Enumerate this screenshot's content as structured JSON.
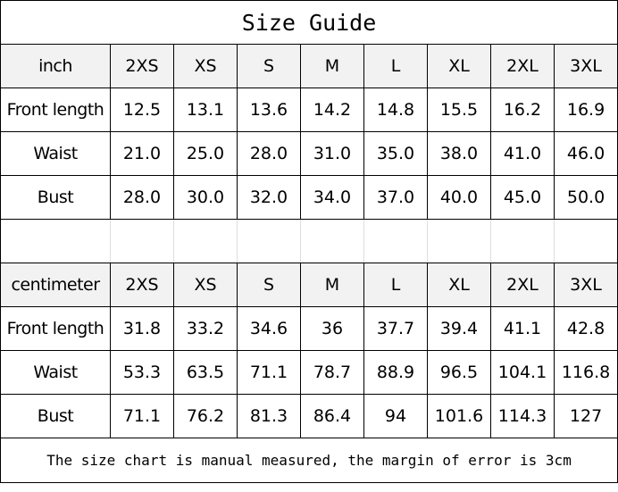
{
  "title": "Size Guide",
  "inch": {
    "header": [
      "inch",
      "2XS",
      "XS",
      "S",
      "M",
      "L",
      "XL",
      "2XL",
      "3XL"
    ],
    "rows": [
      [
        "Front length",
        "12.5",
        "13.1",
        "13.6",
        "14.2",
        "14.8",
        "15.5",
        "16.2",
        "16.9"
      ],
      [
        "Waist",
        "21.0",
        "25.0",
        "28.0",
        "31.0",
        "35.0",
        "38.0",
        "41.0",
        "46.0"
      ],
      [
        "Bust",
        "28.0",
        "30.0",
        "32.0",
        "34.0",
        "37.0",
        "40.0",
        "45.0",
        "50.0"
      ]
    ]
  },
  "centimeter": {
    "header": [
      "centimeter",
      "2XS",
      "XS",
      "S",
      "M",
      "L",
      "XL",
      "2XL",
      "3XL"
    ],
    "rows": [
      [
        "Front length",
        "31.8",
        "33.2",
        "34.6",
        "36",
        "37.7",
        "39.4",
        "41.1",
        "42.8"
      ],
      [
        "Waist",
        "53.3",
        "63.5",
        "71.1",
        "78.7",
        "88.9",
        "96.5",
        "104.1",
        "116.8"
      ],
      [
        "Bust",
        "71.1",
        "76.2",
        "81.3",
        "86.4",
        "94",
        "101.6",
        "114.3",
        "127"
      ]
    ]
  },
  "footer": "The size chart is manual measured, the margin of error is 3cm",
  "colors": {
    "header_bg": "#f2f2f2",
    "border": "#000000"
  }
}
